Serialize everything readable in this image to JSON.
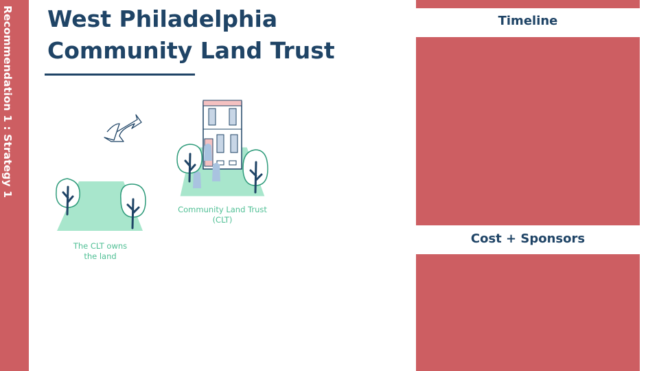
{
  "sidebar": {
    "label": "Recommendation 1 : Strategy 1"
  },
  "title": {
    "line1": "West Philadelphia",
    "line2": "Community Land Trust"
  },
  "illustration": {
    "clt_label_line1": "Community Land Trust",
    "clt_label_line2": "(CLT)",
    "land_label_line1": "The CLT owns",
    "land_label_line2": "the land"
  },
  "panels": {
    "timeline_heading": "Timeline",
    "cost_heading": "Cost + Sponsors"
  },
  "colors": {
    "accent": "#cd5e62",
    "navy": "#1f4466",
    "mint": "#a8e6cc",
    "caption": "#4fbf94"
  }
}
